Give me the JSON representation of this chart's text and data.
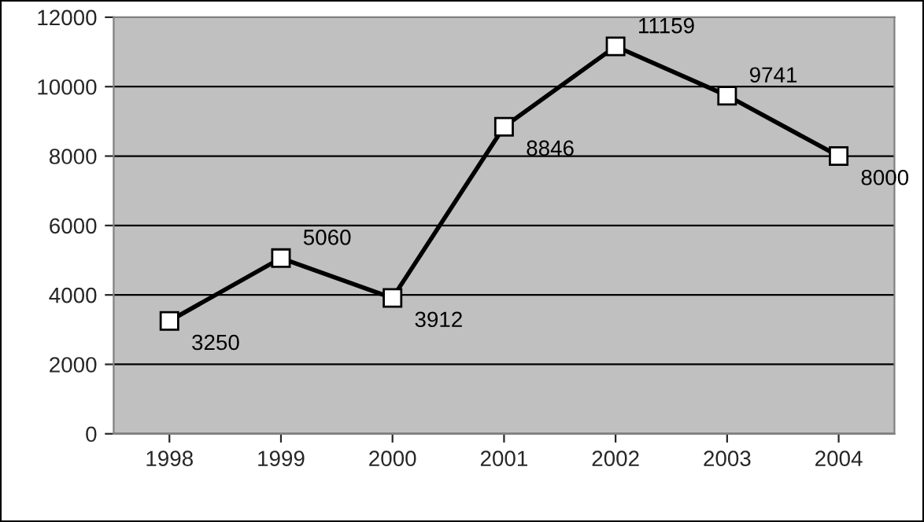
{
  "chart_data": {
    "type": "line",
    "categories": [
      "1998",
      "1999",
      "2000",
      "2001",
      "2002",
      "2003",
      "2004"
    ],
    "values": [
      3250,
      5060,
      3912,
      8846,
      11159,
      9741,
      8000
    ],
    "color": "#000000",
    "marker": "square",
    "line_style": "solid",
    "data_labels": true,
    "ylim": [
      0,
      12000
    ],
    "yticks": [
      0,
      2000,
      4000,
      6000,
      8000,
      10000,
      12000
    ],
    "grid": "y"
  }
}
